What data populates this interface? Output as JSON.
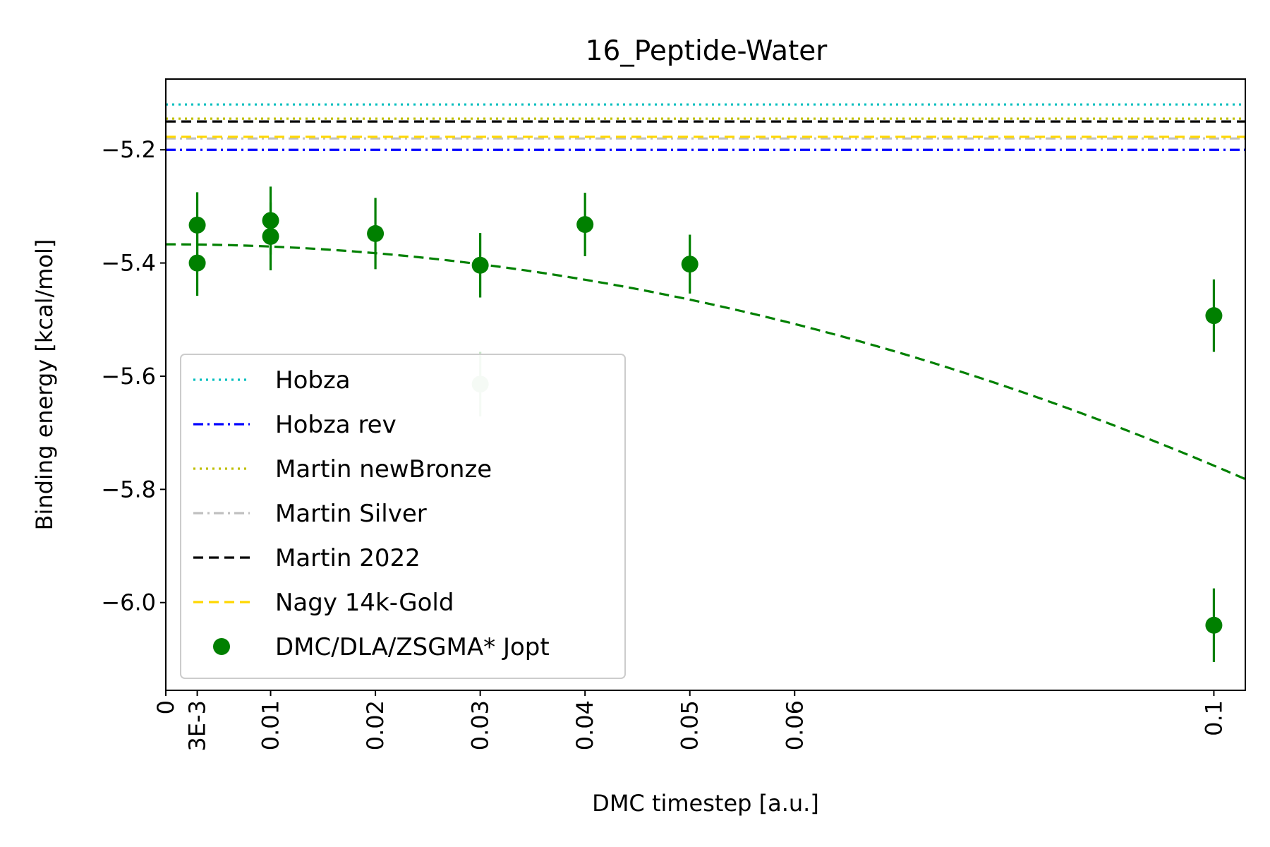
{
  "chart_data": {
    "type": "scatter",
    "title": "16_Peptide-Water",
    "xlabel": "DMC timestep [a.u.]",
    "ylabel": "Binding energy [kcal/mol]",
    "xlim": [
      0,
      0.103
    ],
    "ylim": [
      -6.155,
      -5.075
    ],
    "x_ticks": [
      {
        "value": 0,
        "label": "0"
      },
      {
        "value": 0.003,
        "label": "3E-3"
      },
      {
        "value": 0.01,
        "label": "0.01"
      },
      {
        "value": 0.02,
        "label": "0.02"
      },
      {
        "value": 0.03,
        "label": "0.03"
      },
      {
        "value": 0.04,
        "label": "0.04"
      },
      {
        "value": 0.05,
        "label": "0.05"
      },
      {
        "value": 0.06,
        "label": "0.06"
      },
      {
        "value": 0.1,
        "label": "0.1"
      }
    ],
    "y_ticks": [
      {
        "value": -5.2,
        "label": "−5.2"
      },
      {
        "value": -5.4,
        "label": "−5.4"
      },
      {
        "value": -5.6,
        "label": "−5.6"
      },
      {
        "value": -5.8,
        "label": "−5.8"
      },
      {
        "value": -6.0,
        "label": "−6.0"
      }
    ],
    "reference_lines": [
      {
        "name": "Hobza",
        "y": -5.12,
        "color": "#00bfbf",
        "style": "dotted"
      },
      {
        "name": "Hobza rev",
        "y": -5.2,
        "color": "#0000ff",
        "style": "dashdot"
      },
      {
        "name": "Martin newBronze",
        "y": -5.145,
        "color": "#bfbf00",
        "style": "dotted"
      },
      {
        "name": "Martin Silver",
        "y": -5.18,
        "color": "#c0c0c0",
        "style": "dashdot"
      },
      {
        "name": "Martin 2022",
        "y": -5.15,
        "color": "#000000",
        "style": "dashed"
      },
      {
        "name": "Nagy 14k-Gold",
        "y": -5.177,
        "color": "#ffd700",
        "style": "dashed"
      }
    ],
    "series": [
      {
        "name": "DMC/DLA/ZSGMA* Jopt",
        "color": "#008000",
        "points": [
          {
            "x": 0.003,
            "y": -5.333,
            "err": 0.058
          },
          {
            "x": 0.003,
            "y": -5.4,
            "err": 0.058
          },
          {
            "x": 0.01,
            "y": -5.325,
            "err": 0.06
          },
          {
            "x": 0.01,
            "y": -5.353,
            "err": 0.06
          },
          {
            "x": 0.02,
            "y": -5.348,
            "err": 0.063
          },
          {
            "x": 0.03,
            "y": -5.404,
            "err": 0.057
          },
          {
            "x": 0.03,
            "y": -5.614,
            "err": 0.057,
            "faded": true
          },
          {
            "x": 0.04,
            "y": -5.332,
            "err": 0.056
          },
          {
            "x": 0.05,
            "y": -5.402,
            "err": 0.052
          },
          {
            "x": 0.1,
            "y": -5.493,
            "err": 0.064
          },
          {
            "x": 0.1,
            "y": -6.04,
            "err": 0.065
          }
        ]
      }
    ],
    "fit": {
      "form": "a + b*x^2",
      "a": -5.367,
      "b": -39.1,
      "color": "#008000",
      "style": "dashed"
    },
    "legend": {
      "placement": "lower-left",
      "entries": [
        {
          "label": "Hobza",
          "color": "#00bfbf",
          "style": "dotted"
        },
        {
          "label": "Hobza rev",
          "color": "#0000ff",
          "style": "dashdot"
        },
        {
          "label": "Martin newBronze",
          "color": "#bfbf00",
          "style": "dotted"
        },
        {
          "label": "Martin Silver",
          "color": "#c0c0c0",
          "style": "dashdot"
        },
        {
          "label": "Martin 2022",
          "color": "#000000",
          "style": "dashed"
        },
        {
          "label": "Nagy 14k-Gold",
          "color": "#ffd700",
          "style": "dashed"
        },
        {
          "label": "DMC/DLA/ZSGMA* Jopt",
          "color": "#008000",
          "style": "marker"
        }
      ]
    },
    "grid": false
  }
}
